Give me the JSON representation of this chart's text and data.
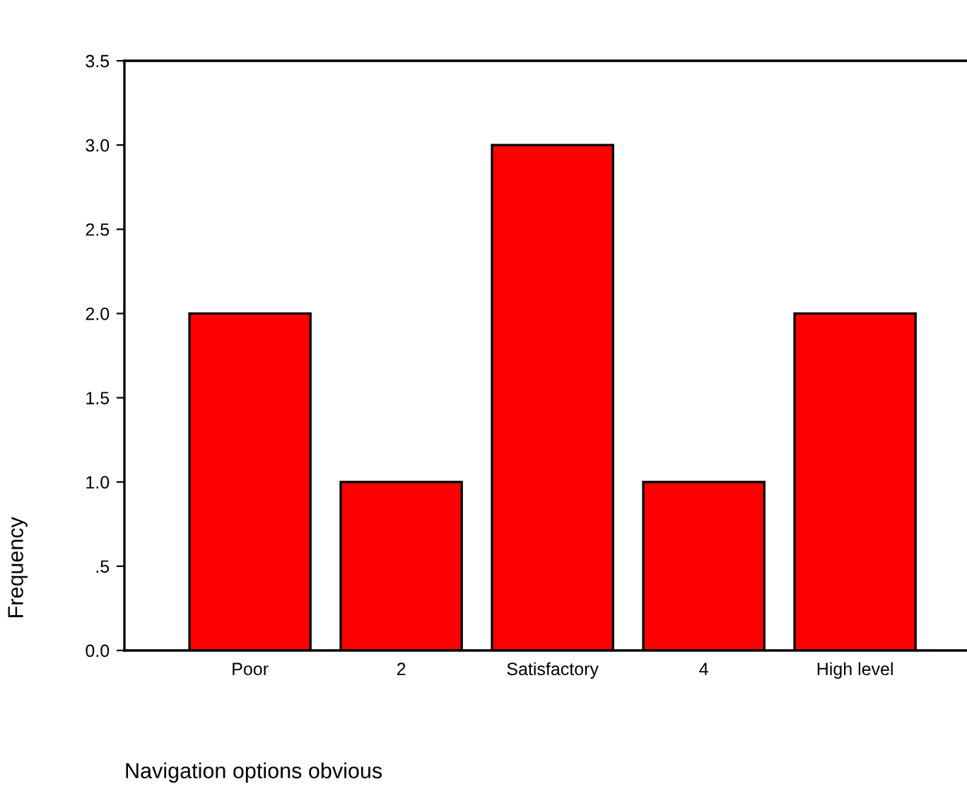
{
  "chart_data": {
    "type": "bar",
    "xlabel": "Navigation options obvious",
    "ylabel": "Frequency",
    "categories": [
      "Poor",
      "2",
      "Satisfactory",
      "4",
      "High level"
    ],
    "values": [
      2,
      1,
      3,
      1,
      2
    ],
    "color": "#ff0000",
    "ylim": [
      0,
      3.5
    ],
    "yticks": [
      {
        "value": 0,
        "label": "0.0"
      },
      {
        "value": 0.5,
        "label": ".5"
      },
      {
        "value": 1,
        "label": "1.0"
      },
      {
        "value": 1.5,
        "label": "1.5"
      },
      {
        "value": 2,
        "label": "2.0"
      },
      {
        "value": 2.5,
        "label": "2.5"
      },
      {
        "value": 3,
        "label": "3.0"
      },
      {
        "value": 3.5,
        "label": "3.5"
      }
    ],
    "grid": false,
    "legend": false
  }
}
